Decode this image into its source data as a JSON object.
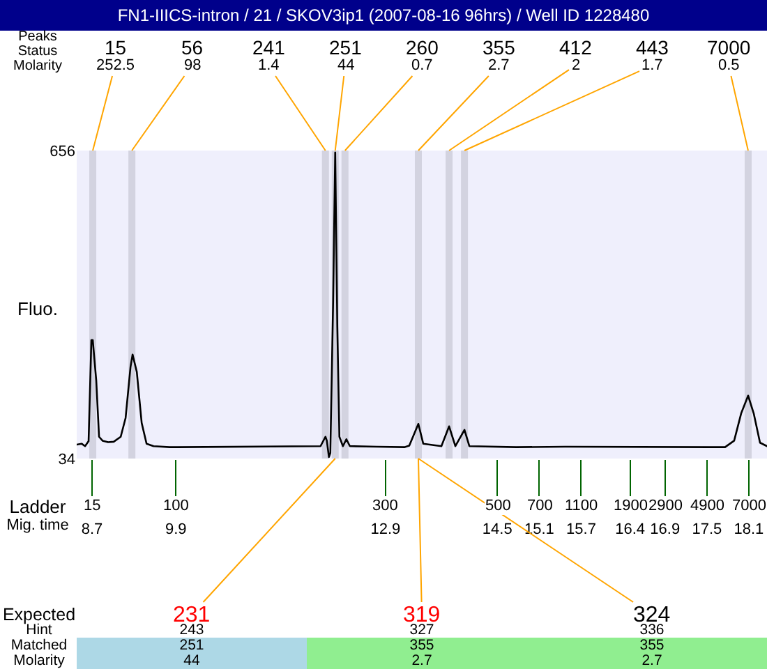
{
  "chart_data": {
    "type": "line",
    "title": "FN1-IIICS-intron / 21 / SKOV3ip1 (2007-08-16 96hrs) / Well ID 1228480",
    "xlabel": "Mig. time",
    "ylabel": "Fluo.",
    "series": [
      {
        "color": "#000000",
        "x": [
          8.48,
          8.55,
          8.6,
          8.65,
          8.69,
          8.71,
          8.76,
          8.8,
          8.85,
          8.93,
          9.01,
          9.11,
          9.18,
          9.25,
          9.28,
          9.34,
          9.41,
          9.48,
          9.58,
          9.81,
          11.97,
          12.04,
          12.06,
          12.09,
          12.11,
          12.15,
          12.18,
          12.21,
          12.24,
          12.29,
          12.34,
          12.39,
          12.77,
          13.17,
          13.24,
          13.37,
          13.44,
          13.7,
          13.81,
          13.9,
          14.03,
          14.1,
          14.77,
          15.47,
          17.76,
          17.89,
          17.99,
          18.09,
          18.17,
          18.26,
          18.36
        ],
        "values": [
          62,
          64,
          59,
          69,
          273,
          273,
          191,
          78,
          70,
          67,
          68,
          78,
          116,
          219,
          244,
          209,
          106,
          64,
          59,
          57,
          59,
          78,
          70,
          37,
          45,
          350,
          652,
          300,
          78,
          59,
          73,
          59,
          58,
          57,
          60,
          104,
          64,
          59,
          99,
          59,
          92,
          59,
          57,
          58,
          57,
          70,
          125,
          161,
          125,
          66,
          59
        ]
      }
    ],
    "xlim": [
      8.48,
      18.36
    ],
    "xticks": [
      8.7,
      9.9,
      12.9,
      14.5,
      15.1,
      15.7,
      16.4,
      16.9,
      17.5,
      18.1
    ],
    "ylim": [
      34,
      656
    ],
    "yticks": [
      34,
      656
    ],
    "bands": [
      {
        "axis": "x",
        "from": 8.66,
        "to": 8.76,
        "label": "15",
        "color": "#d3d3e0"
      },
      {
        "axis": "x",
        "from": 9.22,
        "to": 9.32,
        "label": "56",
        "color": "#d3d3e0"
      },
      {
        "axis": "x",
        "from": 11.99,
        "to": 12.09,
        "label": "241",
        "color": "#d3d3e0"
      },
      {
        "axis": "x",
        "from": 12.13,
        "to": 12.23,
        "label": "251",
        "color": "#d3d3e0"
      },
      {
        "axis": "x",
        "from": 12.27,
        "to": 12.37,
        "label": "260",
        "color": "#d3d3e0"
      },
      {
        "axis": "x",
        "from": 13.32,
        "to": 13.42,
        "label": "355",
        "color": "#d3d3e0"
      },
      {
        "axis": "x",
        "from": 13.76,
        "to": 13.86,
        "label": "412",
        "color": "#d3d3e0"
      },
      {
        "axis": "x",
        "from": 13.98,
        "to": 14.08,
        "label": "443",
        "color": "#d3d3e0"
      },
      {
        "axis": "x",
        "from": 18.04,
        "to": 18.14,
        "label": "7000",
        "color": "#d3d3e0"
      }
    ],
    "annotations": [
      "Peaks",
      "Status",
      "Molarity",
      {
        "text": "252.5",
        "x": 8.71,
        "y": 656
      },
      {
        "text": "98",
        "x": 9.27,
        "y": 656
      },
      {
        "text": "1.4",
        "x": 12.04,
        "y": 656
      },
      {
        "text": "44",
        "x": 12.18,
        "y": 656
      },
      {
        "text": "0.7",
        "x": 12.32,
        "y": 656
      },
      {
        "text": "2.7",
        "x": 13.37,
        "y": 656
      },
      {
        "text": "2",
        "x": 13.81,
        "y": 656
      },
      {
        "text": "1.7",
        "x": 14.03,
        "y": 656
      },
      {
        "text": "0.5",
        "x": 18.09,
        "y": 656
      },
      "Ladder",
      "15",
      "100",
      "300",
      "500",
      "700",
      "1100",
      "1900",
      "2900",
      "4900",
      "7000",
      "Expected",
      "Hint",
      "Matched",
      "Molarity",
      {
        "text": "231",
        "x": 12.18,
        "y": 34
      },
      {
        "text": "319",
        "x": 13.37,
        "y": 34
      },
      {
        "text": "324",
        "x": 13.37,
        "y": 34
      },
      "243",
      "327",
      "336",
      "251",
      "355",
      "355",
      "44",
      "2.7",
      "2.7"
    ]
  }
}
